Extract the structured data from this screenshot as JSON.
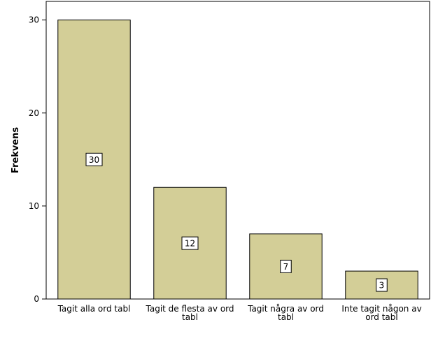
{
  "chart_data": {
    "type": "bar",
    "categories": [
      [
        "Tagit alla ord tabl"
      ],
      [
        "Tagit de flesta av ord",
        "tabl"
      ],
      [
        "Tagit några av ord",
        "tabl"
      ],
      [
        "Inte tagit någon av",
        "ord tabl"
      ]
    ],
    "values": [
      30,
      12,
      7,
      3
    ],
    "data_labels": [
      "30",
      "12",
      "7",
      "3"
    ],
    "ylabel": "Frekvens",
    "xlabel": "",
    "ylim": [
      0,
      32
    ],
    "yticks": [
      0,
      10,
      20,
      30
    ],
    "grid": false,
    "colors": {
      "bar_fill": "#d3ce97",
      "bar_stroke": "#000000"
    }
  }
}
